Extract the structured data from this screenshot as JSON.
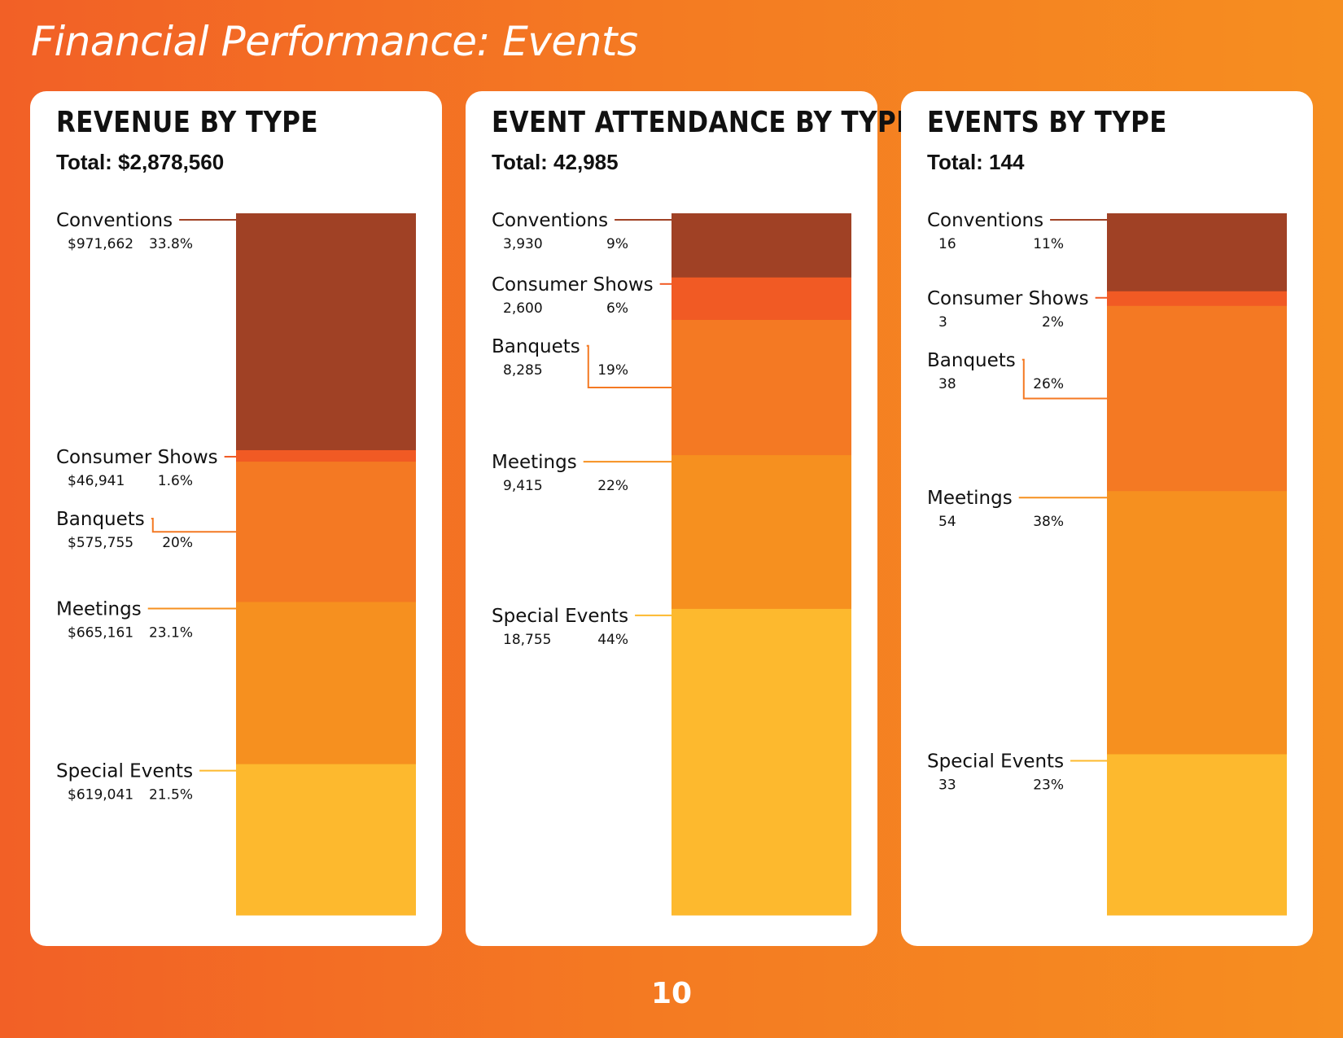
{
  "page": {
    "title": "Financial Performance: Events",
    "page_number": "10"
  },
  "colors": {
    "Conventions": "#a04125",
    "Consumer Shows": "#f15a24",
    "Banquets": "#f47923",
    "Meetings": "#f6901f",
    "Special Events": "#fdb92e"
  },
  "panels": [
    {
      "title": "REVENUE BY TYPE",
      "total_label": "Total: $2,878,560"
    },
    {
      "title": "EVENT ATTENDANCE BY TYPE",
      "total_label": "Total: 42,985"
    },
    {
      "title": "EVENTS BY TYPE",
      "total_label": "Total: 144"
    }
  ],
  "chart_data": [
    {
      "type": "bar",
      "subtype": "100% stacked",
      "title": "REVENUE BY TYPE",
      "subtitle": "Total: $2,878,560",
      "total": 2878560,
      "categories": [
        "Conventions",
        "Consumer Shows",
        "Banquets",
        "Meetings",
        "Special Events"
      ],
      "values": [
        971662,
        46941,
        575755,
        665161,
        619041
      ],
      "value_labels": [
        "$971,662",
        "$46,941",
        "$575,755",
        "$665,161",
        "$619,041"
      ],
      "percent_labels": [
        "33.8%",
        "1.6%",
        "20%",
        "23.1%",
        "21.5%"
      ],
      "percents": [
        33.8,
        1.6,
        20,
        23.1,
        21.5
      ]
    },
    {
      "type": "bar",
      "subtype": "100% stacked",
      "title": "EVENT ATTENDANCE BY TYPE",
      "subtitle": "Total: 42,985",
      "total": 42985,
      "categories": [
        "Conventions",
        "Consumer Shows",
        "Banquets",
        "Meetings",
        "Special Events"
      ],
      "values": [
        3930,
        2600,
        8285,
        9415,
        18755
      ],
      "value_labels": [
        "3,930",
        "2,600",
        "8,285",
        "9,415",
        "18,755"
      ],
      "percent_labels": [
        "9%",
        "6%",
        "19%",
        "22%",
        "44%"
      ],
      "percents": [
        9,
        6,
        19,
        22,
        44
      ]
    },
    {
      "type": "bar",
      "subtype": "100% stacked",
      "title": "EVENTS BY TYPE",
      "subtitle": "Total: 144",
      "total": 144,
      "categories": [
        "Conventions",
        "Consumer Shows",
        "Banquets",
        "Meetings",
        "Special Events"
      ],
      "values": [
        16,
        3,
        38,
        54,
        33
      ],
      "value_labels": [
        "16",
        "3",
        "38",
        "54",
        "33"
      ],
      "percent_labels": [
        "11%",
        "2%",
        "26%",
        "38%",
        "23%"
      ],
      "percents": [
        11,
        2,
        26,
        38,
        23
      ]
    }
  ]
}
